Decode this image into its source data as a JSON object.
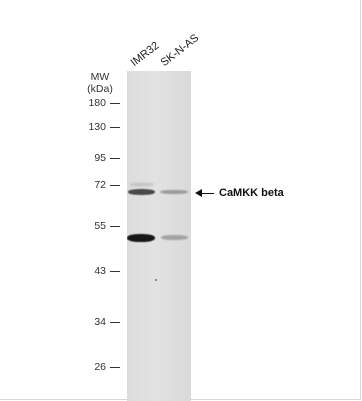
{
  "lanes": [
    "IMR32",
    "SK-N-AS"
  ],
  "mw": {
    "line1": "MW",
    "line2": "(kDa)"
  },
  "markers": [
    "180",
    "130",
    "95",
    "72",
    "55",
    "43",
    "34",
    "26"
  ],
  "target": {
    "label": "CaMKK beta"
  },
  "colors": {
    "membrane": "#dcdcdc",
    "band_strong": "#1a1a1a",
    "band_weak": "#8a8a8a"
  }
}
